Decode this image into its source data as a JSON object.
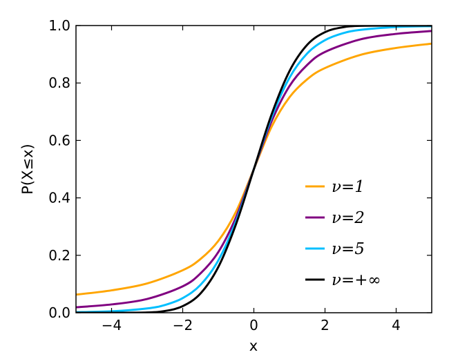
{
  "chart_data": {
    "type": "line",
    "title": "",
    "xlabel": "x",
    "ylabel": "P(X≤x)",
    "xlim": [
      -5,
      5
    ],
    "ylim": [
      0,
      1
    ],
    "x_ticks": [
      -4,
      -2,
      0,
      2,
      4
    ],
    "x_tick_labels": [
      "−4",
      "−2",
      "0",
      "2",
      "4"
    ],
    "y_ticks": [
      0.0,
      0.2,
      0.4,
      0.6,
      0.8,
      1.0
    ],
    "y_tick_labels": [
      "0.0",
      "0.2",
      "0.4",
      "0.6",
      "0.8",
      "1.0"
    ],
    "grid": false,
    "legend_position": "lower-right",
    "series": [
      {
        "name": "ν=1",
        "color": "#ffa500",
        "x": [
          -5,
          -4,
          -3,
          -2,
          -1.5,
          -1,
          -0.5,
          0,
          0.5,
          1,
          1.5,
          2,
          3,
          4,
          5
        ],
        "y": [
          0.063,
          0.078,
          0.102,
          0.148,
          0.187,
          0.25,
          0.352,
          0.5,
          0.648,
          0.75,
          0.813,
          0.852,
          0.898,
          0.922,
          0.937
        ]
      },
      {
        "name": "ν=2",
        "color": "#800080",
        "x": [
          -5,
          -4,
          -3,
          -2,
          -1.5,
          -1,
          -0.5,
          0,
          0.5,
          1,
          1.5,
          2,
          3,
          4,
          5
        ],
        "y": [
          0.019,
          0.029,
          0.048,
          0.092,
          0.137,
          0.211,
          0.333,
          0.5,
          0.667,
          0.789,
          0.863,
          0.908,
          0.952,
          0.971,
          0.981
        ]
      },
      {
        "name": "ν=5",
        "color": "#00bfff",
        "x": [
          -5,
          -4,
          -3,
          -2.5,
          -2,
          -1.5,
          -1,
          -0.5,
          0,
          0.5,
          1,
          1.5,
          2,
          2.5,
          3,
          4,
          5
        ],
        "y": [
          0.002,
          0.005,
          0.015,
          0.027,
          0.051,
          0.097,
          0.182,
          0.319,
          0.5,
          0.681,
          0.818,
          0.903,
          0.949,
          0.973,
          0.985,
          0.995,
          0.998
        ]
      },
      {
        "name": "ν=+∞",
        "color": "#000000",
        "x": [
          -5,
          -4,
          -3,
          -2.5,
          -2,
          -1.5,
          -1,
          -0.5,
          0,
          0.5,
          1,
          1.5,
          2,
          2.5,
          3,
          4,
          5
        ],
        "y": [
          0.0,
          0.0,
          0.001,
          0.006,
          0.023,
          0.067,
          0.159,
          0.309,
          0.5,
          0.691,
          0.841,
          0.933,
          0.977,
          0.994,
          0.999,
          1.0,
          1.0
        ]
      }
    ]
  }
}
